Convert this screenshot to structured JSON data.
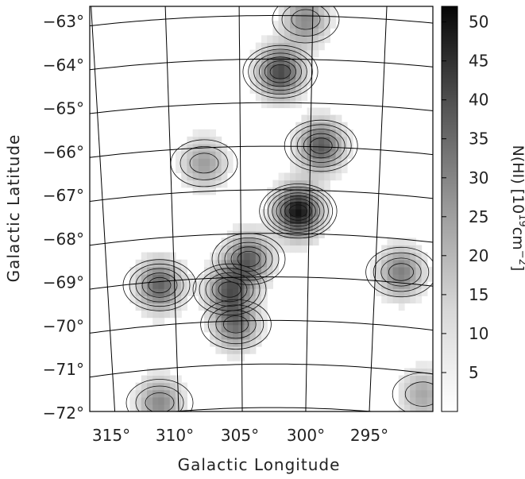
{
  "chart_data": {
    "type": "heatmap",
    "title": "",
    "xlabel": "Galactic Longitude",
    "ylabel": "Galactic Latitude",
    "x_ticks": [
      "315°",
      "310°",
      "305°",
      "300°",
      "295°"
    ],
    "y_ticks": [
      "−63°",
      "−64°",
      "−65°",
      "−66°",
      "−67°",
      "−68°",
      "−69°",
      "−70°",
      "−71°",
      "−72°"
    ],
    "colorbar": {
      "label_main": "N(HI) [10",
      "label_exp1": "19",
      "label_mid": "cm",
      "label_exp2": "−2",
      "label_end": "]",
      "ticks": [
        "5",
        "10",
        "15",
        "20",
        "25",
        "30",
        "35",
        "40",
        "45",
        "50"
      ],
      "range": [
        0,
        52
      ]
    },
    "xlim": [
      317,
      290
    ],
    "ylim": [
      -72,
      -62.7
    ],
    "blobs": [
      {
        "lon": 300.6,
        "lat": -67.4,
        "peak": 48
      },
      {
        "lon": 302.0,
        "lat": -64.2,
        "peak": 36
      },
      {
        "lon": 298.8,
        "lat": -65.9,
        "peak": 32
      },
      {
        "lon": 304.5,
        "lat": -68.5,
        "peak": 30
      },
      {
        "lon": 306.0,
        "lat": -69.2,
        "peak": 30
      },
      {
        "lon": 311.5,
        "lat": -69.1,
        "peak": 30
      },
      {
        "lon": 305.5,
        "lat": -70.0,
        "peak": 26
      },
      {
        "lon": 292.5,
        "lat": -68.8,
        "peak": 24
      },
      {
        "lon": 308.0,
        "lat": -66.3,
        "peak": 18
      },
      {
        "lon": 311.5,
        "lat": -71.8,
        "peak": 22
      },
      {
        "lon": 290.8,
        "lat": -71.6,
        "peak": 16
      },
      {
        "lon": 300.0,
        "lat": -63.0,
        "peak": 22
      }
    ]
  }
}
